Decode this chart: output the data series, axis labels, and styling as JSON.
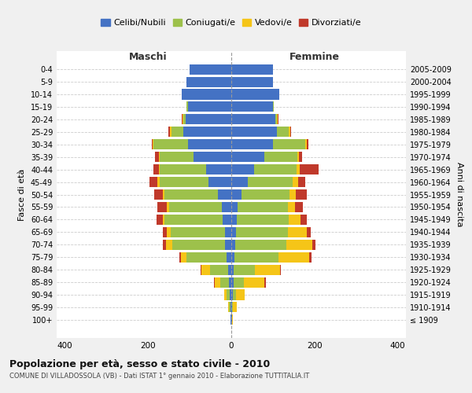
{
  "age_groups": [
    "100+",
    "95-99",
    "90-94",
    "85-89",
    "80-84",
    "75-79",
    "70-74",
    "65-69",
    "60-64",
    "55-59",
    "50-54",
    "45-49",
    "40-44",
    "35-39",
    "30-34",
    "25-29",
    "20-24",
    "15-19",
    "10-14",
    "5-9",
    "0-4"
  ],
  "birth_years": [
    "≤ 1909",
    "1910-1914",
    "1915-1919",
    "1920-1924",
    "1925-1929",
    "1930-1934",
    "1935-1939",
    "1940-1944",
    "1945-1949",
    "1950-1954",
    "1955-1959",
    "1960-1964",
    "1965-1969",
    "1970-1974",
    "1975-1979",
    "1980-1984",
    "1985-1989",
    "1990-1994",
    "1995-1999",
    "2000-2004",
    "2005-2009"
  ],
  "male_celibe": [
    1,
    2,
    3,
    5,
    7,
    12,
    16,
    16,
    20,
    22,
    32,
    55,
    60,
    90,
    105,
    115,
    110,
    105,
    120,
    108,
    100
  ],
  "male_coniugato": [
    0,
    3,
    8,
    22,
    45,
    95,
    125,
    130,
    140,
    128,
    128,
    118,
    112,
    82,
    82,
    28,
    5,
    2,
    0,
    0,
    0
  ],
  "male_vedovo": [
    1,
    3,
    6,
    12,
    20,
    14,
    16,
    10,
    5,
    5,
    5,
    4,
    3,
    3,
    2,
    5,
    2,
    0,
    0,
    0,
    0
  ],
  "male_divorziato": [
    0,
    0,
    0,
    3,
    2,
    3,
    8,
    8,
    15,
    22,
    20,
    20,
    12,
    8,
    3,
    3,
    2,
    0,
    0,
    0,
    0
  ],
  "female_celibe": [
    1,
    2,
    3,
    5,
    5,
    8,
    10,
    12,
    14,
    16,
    25,
    40,
    55,
    80,
    100,
    110,
    105,
    100,
    115,
    100,
    100
  ],
  "female_coniugato": [
    0,
    2,
    8,
    25,
    52,
    105,
    122,
    125,
    125,
    120,
    115,
    108,
    102,
    78,
    78,
    28,
    5,
    2,
    0,
    0,
    0
  ],
  "female_vedova": [
    3,
    10,
    22,
    50,
    60,
    75,
    62,
    45,
    28,
    18,
    16,
    12,
    8,
    5,
    4,
    3,
    2,
    0,
    0,
    0,
    0
  ],
  "female_divorziata": [
    0,
    0,
    0,
    3,
    3,
    5,
    8,
    10,
    15,
    18,
    25,
    18,
    45,
    8,
    4,
    3,
    2,
    0,
    0,
    0,
    0
  ],
  "colors": {
    "celibe": "#4472C4",
    "coniugato": "#9DC14B",
    "vedovo": "#F5C518",
    "divorziato": "#C0392B"
  },
  "xlim": 420,
  "title_main": "Popolazione per età, sesso e stato civile - 2010",
  "title_sub": "COMUNE DI VILLADOSSOLA (VB) - Dati ISTAT 1° gennaio 2010 - Elaborazione TUTTITALIA.IT",
  "ylabel_left": "Fasce di età",
  "ylabel_right": "Anni di nascita",
  "xlabel_left": "Maschi",
  "xlabel_right": "Femmine",
  "legend_labels": [
    "Celibi/Nubili",
    "Coniugati/e",
    "Vedovi/e",
    "Divorziati/e"
  ],
  "bg_color": "#f0f0f0",
  "plot_bg": "#ffffff"
}
